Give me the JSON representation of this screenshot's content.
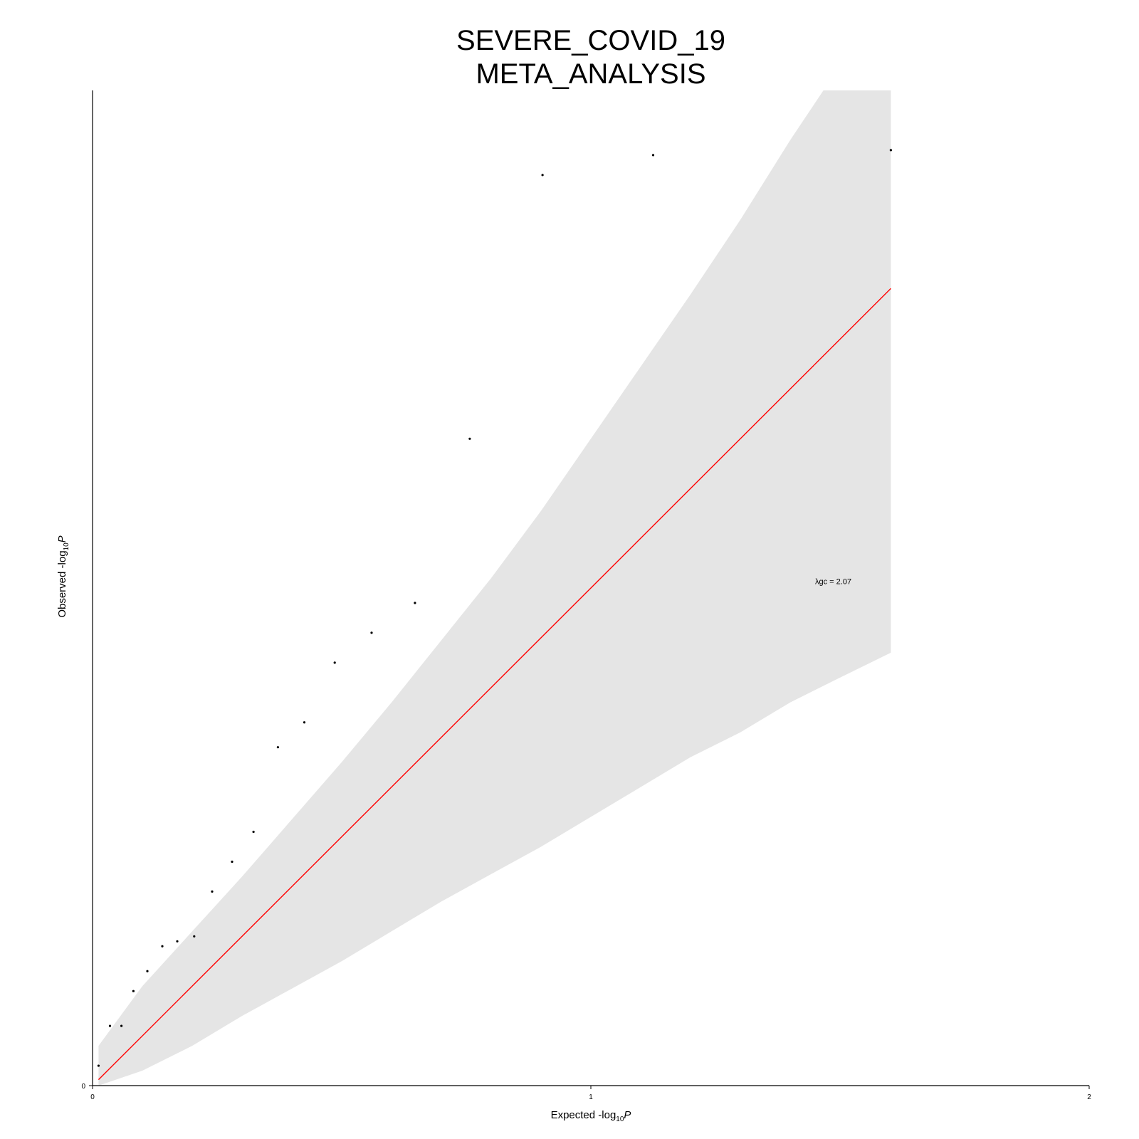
{
  "chart_data": {
    "type": "scatter",
    "title": [
      "SEVERE_COVID_19",
      "META_ANALYSIS"
    ],
    "xlabel": {
      "main": "Expected -log",
      "sub": "10",
      "italic": "P"
    },
    "ylabel": {
      "main": "Observed -log",
      "sub": "10",
      "italic": "P"
    },
    "xlim": [
      0,
      2
    ],
    "ylim": [
      0,
      2
    ],
    "x_ticks": [
      0,
      1,
      2
    ],
    "y_ticks": [
      0
    ],
    "grid": false,
    "annotation": {
      "text": "λgc = 2.07",
      "x": 1.45,
      "y": 1.008
    },
    "reference_line": {
      "color": "#ff0000",
      "from": [
        0.012,
        0.012
      ],
      "to": [
        1.602,
        1.602
      ]
    },
    "confidence_band": {
      "color": "#e5e5e5",
      "x": [
        0.012,
        0.1,
        0.2,
        0.3,
        0.4,
        0.5,
        0.6,
        0.7,
        0.8,
        0.9,
        1.0,
        1.1,
        1.2,
        1.3,
        1.4,
        1.5,
        1.602
      ],
      "upper": [
        0.08,
        0.2,
        0.31,
        0.42,
        0.535,
        0.65,
        0.77,
        0.895,
        1.02,
        1.155,
        1.3,
        1.445,
        1.59,
        1.74,
        1.9,
        2.05,
        2.2
      ],
      "lower": [
        0.0,
        0.03,
        0.08,
        0.14,
        0.195,
        0.25,
        0.31,
        0.37,
        0.425,
        0.48,
        0.54,
        0.6,
        0.66,
        0.71,
        0.77,
        0.82,
        0.87
      ]
    },
    "points": {
      "x": [
        0.012,
        0.035,
        0.058,
        0.082,
        0.11,
        0.14,
        0.17,
        0.204,
        0.24,
        0.28,
        0.323,
        0.372,
        0.425,
        0.486,
        0.56,
        0.647,
        0.757,
        0.903,
        1.125,
        1.602
      ],
      "y": [
        0.04,
        0.12,
        0.12,
        0.19,
        0.23,
        0.28,
        0.29,
        0.3,
        0.39,
        0.45,
        0.51,
        0.68,
        0.73,
        0.85,
        0.91,
        0.97,
        1.3,
        1.83,
        1.87,
        1.88
      ]
    }
  }
}
